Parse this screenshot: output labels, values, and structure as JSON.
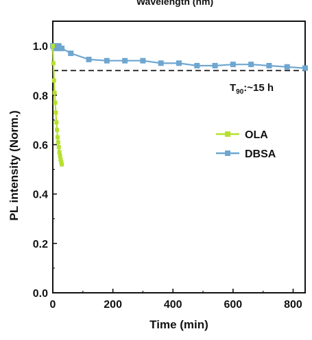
{
  "chart_data": {
    "type": "line",
    "top_label": "Wavelength (nm)",
    "xlabel": "Time (min)",
    "ylabel": "PL intensity (Norm.)",
    "xlim": [
      0,
      840
    ],
    "ylim": [
      0.0,
      1.1
    ],
    "x_ticks": [
      0,
      200,
      400,
      600,
      800
    ],
    "x_tick_labels": [
      "0",
      "200",
      "400",
      "600",
      "800"
    ],
    "y_ticks": [
      0.0,
      0.2,
      0.4,
      0.6,
      0.8,
      1.0
    ],
    "y_tick_labels": [
      "0.0",
      "0.2",
      "0.4",
      "0.6",
      "0.8",
      "1.0"
    ],
    "grid": false,
    "legend_position": "right-middle",
    "reference_line": {
      "y": 0.9,
      "style": "dashed",
      "color": "#333333"
    },
    "annotation": {
      "prefix": "T",
      "subscript": "90",
      "suffix": ":~15 h"
    },
    "series": [
      {
        "name": "OLA",
        "color": "#b5e02f",
        "marker": "square",
        "x": [
          0,
          2,
          4,
          6,
          8,
          10,
          12,
          14,
          16,
          18,
          20,
          22,
          24,
          26,
          28,
          30
        ],
        "y": [
          1.0,
          0.93,
          0.86,
          0.81,
          0.77,
          0.73,
          0.69,
          0.66,
          0.63,
          0.61,
          0.59,
          0.57,
          0.555,
          0.54,
          0.53,
          0.52
        ]
      },
      {
        "name": "DBSA",
        "color": "#6ea6d0",
        "marker": "square",
        "x": [
          0,
          5,
          10,
          15,
          20,
          25,
          30,
          60,
          120,
          180,
          240,
          300,
          360,
          420,
          480,
          540,
          600,
          660,
          720,
          780,
          840
        ],
        "y": [
          1.0,
          0.99,
          1.0,
          0.99,
          1.0,
          0.99,
          0.99,
          0.97,
          0.945,
          0.94,
          0.94,
          0.94,
          0.93,
          0.93,
          0.92,
          0.92,
          0.925,
          0.925,
          0.92,
          0.915,
          0.91
        ]
      }
    ]
  }
}
